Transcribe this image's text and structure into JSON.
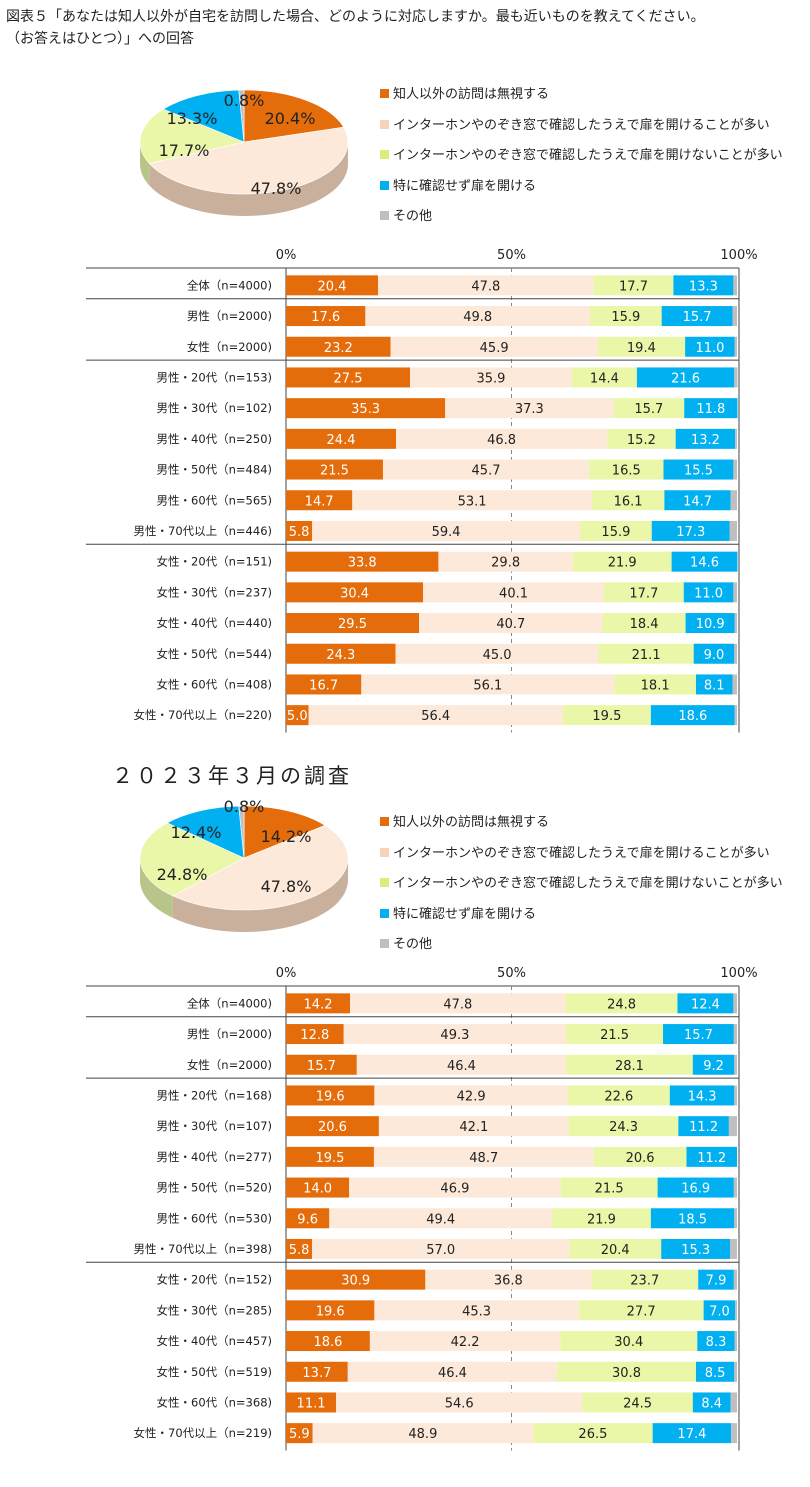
{
  "header": {
    "title_line1": "図表５「あなたは知人以外が自宅を訪問した場合、どのように対応しますか。最も近いものを教えてください。",
    "title_line2": "（お答えはひとつ）」への回答"
  },
  "section2_title": "２０２３年３月の調査",
  "legend": [
    {
      "label": "知人以外の訪問は無視する",
      "color": "#E46C0A"
    },
    {
      "label": "インターホンやのぞき窓で確認したうえで扉を開けることが多い",
      "color": "#FDE9D9"
    },
    {
      "label": "インターホンやのぞき窓で確認したうえで扉を開けないことが多い",
      "color": "#EBF7A8"
    },
    {
      "label": "特に確認せず扉を開ける",
      "color": "#00B0F0"
    },
    {
      "label": "その他",
      "color": "#BFBFBF"
    }
  ],
  "axis_ticks": [
    "0%",
    "50%",
    "100%"
  ],
  "chart_data": [
    {
      "type": "pie",
      "labels": [
        "知人以外の訪問は無視する",
        "インターホンやのぞき窓で確認したうえで扉を開けることが多い",
        "インターホンやのぞき窓で確認したうえで扉を開けないことが多い",
        "特に確認せず扉を開ける",
        "その他"
      ],
      "values": [
        20.4,
        47.8,
        17.7,
        13.3,
        0.8
      ],
      "value_labels": [
        "20.4%",
        "47.8%",
        "17.7%",
        "13.3%",
        "0.8%"
      ]
    },
    {
      "type": "bar",
      "orientation": "horizontal-stacked-100",
      "xlim": [
        0,
        100
      ],
      "categories": [
        "全体（n=4000)",
        "男性（n=2000)",
        "女性（n=2000)",
        "男性・20代（n=153)",
        "男性・30代（n=102)",
        "男性・40代（n=250)",
        "男性・50代（n=484)",
        "男性・60代（n=565)",
        "男性・70代以上（n=446)",
        "女性・20代（n=151)",
        "女性・30代（n=237)",
        "女性・40代（n=440)",
        "女性・50代（n=544)",
        "女性・60代（n=408)",
        "女性・70代以上（n=220)"
      ],
      "series": [
        {
          "name": "知人以外の訪問は無視する",
          "values": [
            20.4,
            17.6,
            23.2,
            27.5,
            35.3,
            24.4,
            21.5,
            14.7,
            5.8,
            33.8,
            30.4,
            29.5,
            24.3,
            16.7,
            5.0
          ]
        },
        {
          "name": "インターホンやのぞき窓で確認したうえで扉を開けることが多い",
          "values": [
            47.8,
            49.8,
            45.9,
            35.9,
            37.3,
            46.8,
            45.7,
            53.1,
            59.4,
            29.8,
            40.1,
            40.7,
            45.0,
            56.1,
            56.4
          ]
        },
        {
          "name": "インターホンやのぞき窓で確認したうえで扉を開けないことが多い",
          "values": [
            17.7,
            15.9,
            19.4,
            14.4,
            15.7,
            15.2,
            16.5,
            16.1,
            15.9,
            21.9,
            17.7,
            18.4,
            21.1,
            18.1,
            19.5
          ]
        },
        {
          "name": "特に確認せず扉を開ける",
          "values": [
            13.3,
            15.7,
            11.0,
            21.6,
            11.8,
            13.2,
            15.5,
            14.7,
            17.3,
            14.6,
            11.0,
            10.9,
            9.0,
            8.1,
            18.6
          ]
        },
        {
          "name": "その他",
          "values": [
            0.8,
            1.0,
            0.5,
            0.7,
            0.0,
            0.4,
            0.8,
            1.4,
            1.6,
            0.0,
            0.8,
            0.5,
            0.6,
            1.0,
            0.5
          ]
        }
      ],
      "group_separators_after": [
        0,
        2,
        8
      ]
    },
    {
      "type": "pie",
      "labels": [
        "知人以外の訪問は無視する",
        "インターホンやのぞき窓で確認したうえで扉を開けることが多い",
        "インターホンやのぞき窓で確認したうえで扉を開けないことが多い",
        "特に確認せず扉を開ける",
        "その他"
      ],
      "values": [
        14.2,
        47.8,
        24.8,
        12.4,
        0.8
      ],
      "value_labels": [
        "14.2%",
        "47.8%",
        "24.8%",
        "12.4%",
        "0.8%"
      ]
    },
    {
      "type": "bar",
      "orientation": "horizontal-stacked-100",
      "xlim": [
        0,
        100
      ],
      "categories": [
        "全体（n=4000)",
        "男性（n=2000)",
        "女性（n=2000)",
        "男性・20代（n=168)",
        "男性・30代（n=107)",
        "男性・40代（n=277)",
        "男性・50代（n=520)",
        "男性・60代（n=530)",
        "男性・70代以上（n=398)",
        "女性・20代（n=152)",
        "女性・30代（n=285)",
        "女性・40代（n=457)",
        "女性・50代（n=519)",
        "女性・60代（n=368)",
        "女性・70代以上（n=219)"
      ],
      "series": [
        {
          "name": "知人以外の訪問は無視する",
          "values": [
            14.2,
            12.8,
            15.7,
            19.6,
            20.6,
            19.5,
            14.0,
            9.6,
            5.8,
            30.9,
            19.6,
            18.6,
            13.7,
            11.1,
            5.9
          ]
        },
        {
          "name": "インターホンやのぞき窓で確認したうえで扉を開けることが多い",
          "values": [
            47.8,
            49.3,
            46.4,
            42.9,
            42.1,
            48.7,
            46.9,
            49.4,
            57.0,
            36.8,
            45.3,
            42.2,
            46.4,
            54.6,
            48.9
          ]
        },
        {
          "name": "インターホンやのぞき窓で確認したうえで扉を開けないことが多い",
          "values": [
            24.8,
            21.5,
            28.1,
            22.6,
            24.3,
            20.6,
            21.5,
            21.9,
            20.4,
            23.7,
            27.7,
            30.4,
            30.8,
            24.5,
            26.5
          ]
        },
        {
          "name": "特に確認せず扉を開ける",
          "values": [
            12.4,
            15.7,
            9.2,
            14.3,
            11.2,
            11.2,
            16.9,
            18.5,
            15.3,
            7.9,
            7.0,
            8.3,
            8.5,
            8.4,
            17.4
          ]
        },
        {
          "name": "その他",
          "values": [
            0.8,
            0.7,
            0.6,
            0.6,
            1.8,
            0.0,
            0.7,
            0.6,
            1.5,
            0.7,
            0.4,
            0.5,
            0.6,
            1.4,
            1.3
          ]
        }
      ],
      "group_separators_after": [
        0,
        2,
        8
      ]
    }
  ]
}
